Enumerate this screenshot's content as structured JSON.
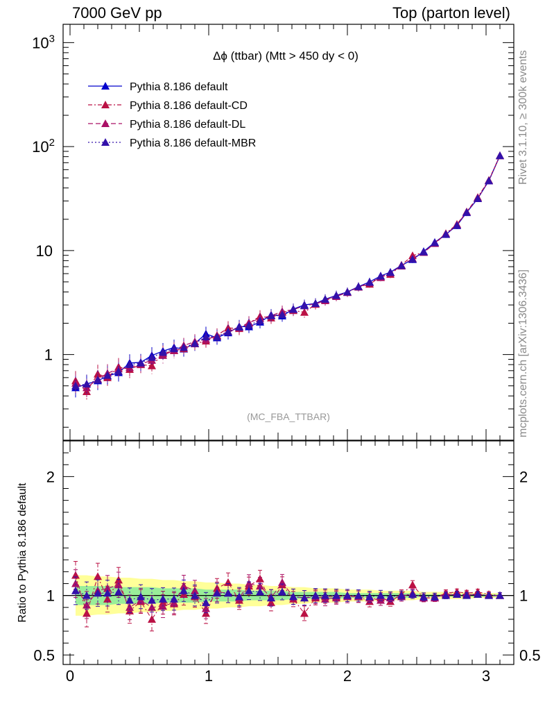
{
  "header": {
    "left": "7000 GeV pp",
    "right": "Top (parton level)"
  },
  "side_text": {
    "rivet": "Rivet 3.1.10, ≥ 300k events",
    "mcplots": "mcplots.cern.ch [arXiv:1306.3436]"
  },
  "watermark": "(MC_FBA_TTBAR)",
  "chart_data": [
    {
      "type": "line",
      "title": "Δϕ (ttbar) (Mtt > 450 dy < 0)",
      "xlabel": "",
      "ylabel": "",
      "yscale": "log",
      "xlim": [
        -0.05,
        3.2
      ],
      "ylim": [
        0.15,
        1500
      ],
      "x_ticks": [
        "0",
        "1",
        "2",
        "3"
      ],
      "y_ticks": [
        "1",
        "10",
        "10^2",
        "10^3"
      ],
      "legend_position": "top-left",
      "x": [
        0.04,
        0.12,
        0.2,
        0.27,
        0.35,
        0.43,
        0.51,
        0.59,
        0.67,
        0.75,
        0.82,
        0.9,
        0.98,
        1.06,
        1.14,
        1.22,
        1.29,
        1.37,
        1.45,
        1.53,
        1.61,
        1.69,
        1.77,
        1.84,
        1.92,
        2.0,
        2.08,
        2.16,
        2.24,
        2.31,
        2.39,
        2.47,
        2.55,
        2.63,
        2.71,
        2.79,
        2.86,
        2.94,
        3.02,
        3.1
      ],
      "series": [
        {
          "name": "Pythia 8.186 default",
          "color": "#0000cc",
          "dash": "",
          "error_bars": true,
          "values": [
            0.48,
            0.52,
            0.56,
            0.62,
            0.67,
            0.83,
            0.84,
            0.98,
            1.08,
            1.17,
            1.13,
            1.28,
            1.58,
            1.45,
            1.62,
            1.86,
            1.85,
            2.05,
            2.4,
            2.35,
            2.74,
            3.0,
            3.1,
            3.4,
            3.7,
            4.0,
            4.5,
            5.0,
            5.7,
            6.2,
            7.2,
            8.2,
            9.8,
            12.0,
            14.3,
            17.4,
            23.2,
            31.6,
            46.8,
            81.8
          ]
        },
        {
          "name": "Pythia 8.186 default-CD",
          "color": "#bb1144",
          "dash": "6,3,2,3",
          "error_bars": true,
          "values": [
            0.56,
            0.44,
            0.65,
            0.6,
            0.76,
            0.72,
            0.8,
            0.78,
            1.02,
            1.09,
            1.14,
            1.27,
            1.35,
            1.53,
            1.8,
            1.78,
            2.0,
            2.33,
            2.25,
            2.55,
            2.65,
            2.55,
            3.04,
            3.35,
            3.66,
            4.0,
            4.48,
            4.75,
            5.6,
            5.9,
            7.25,
            8.95,
            9.6,
            11.8,
            14.6,
            17.9,
            23.6,
            32.5,
            47.5,
            82.0
          ]
        },
        {
          "name": "Pythia 8.186 default-DL",
          "color": "#aa1166",
          "dash": "7,4",
          "error_bars": true,
          "values": [
            0.53,
            0.48,
            0.58,
            0.66,
            0.73,
            0.75,
            0.81,
            0.88,
            0.98,
            1.1,
            1.22,
            1.33,
            1.4,
            1.5,
            1.66,
            1.82,
            2.03,
            2.22,
            2.36,
            2.6,
            2.7,
            2.95,
            3.08,
            3.3,
            3.62,
            3.95,
            4.45,
            4.9,
            5.5,
            6.1,
            7.1,
            8.4,
            9.6,
            11.7,
            14.4,
            17.6,
            23.5,
            31.8,
            47.0,
            81.5
          ]
        },
        {
          "name": "Pythia 8.186 default-MBR",
          "color": "#3311aa",
          "dash": "2,3",
          "error_bars": true,
          "values": [
            0.5,
            0.52,
            0.57,
            0.63,
            0.69,
            0.8,
            0.83,
            0.94,
            1.05,
            1.14,
            1.17,
            1.28,
            1.48,
            1.48,
            1.66,
            1.84,
            1.92,
            2.12,
            2.36,
            2.42,
            2.72,
            2.95,
            3.1,
            3.4,
            3.7,
            4.0,
            4.5,
            4.96,
            5.68,
            6.16,
            7.18,
            8.26,
            9.72,
            11.9,
            14.36,
            17.5,
            23.3,
            31.8,
            47.0,
            81.8
          ]
        }
      ]
    },
    {
      "type": "line",
      "ylabel": "Ratio to Pythia 8.186 default",
      "xlabel": "",
      "xlim": [
        -0.05,
        3.2
      ],
      "ylim": [
        0.42,
        2.3
      ],
      "x_ticks": [
        "0",
        "1",
        "2",
        "3"
      ],
      "y_ticks": [
        "0.5",
        "1",
        "2"
      ],
      "x": [
        0.04,
        0.12,
        0.2,
        0.27,
        0.35,
        0.43,
        0.51,
        0.59,
        0.67,
        0.75,
        0.82,
        0.9,
        0.98,
        1.06,
        1.14,
        1.22,
        1.29,
        1.37,
        1.45,
        1.53,
        1.61,
        1.69,
        1.77,
        1.84,
        1.92,
        2.0,
        2.08,
        2.16,
        2.24,
        2.31,
        2.39,
        2.47,
        2.55,
        2.63,
        2.71,
        2.79,
        2.86,
        2.94,
        3.02,
        3.1
      ],
      "bands": {
        "yellow_half_width": [
          0.17,
          0.17,
          0.16,
          0.16,
          0.15,
          0.15,
          0.14,
          0.14,
          0.13,
          0.13,
          0.12,
          0.12,
          0.11,
          0.11,
          0.1,
          0.1,
          0.09,
          0.09,
          0.08,
          0.08,
          0.07,
          0.07,
          0.06,
          0.06,
          0.06,
          0.05,
          0.05,
          0.05,
          0.04,
          0.04,
          0.04,
          0.04,
          0.03,
          0.03,
          0.03,
          0.03,
          0.03,
          0.02,
          0.02,
          0.02
        ],
        "green_half_width": [
          0.08,
          0.08,
          0.08,
          0.08,
          0.07,
          0.07,
          0.07,
          0.07,
          0.06,
          0.06,
          0.06,
          0.06,
          0.05,
          0.05,
          0.05,
          0.05,
          0.04,
          0.04,
          0.04,
          0.04,
          0.03,
          0.03,
          0.03,
          0.03,
          0.03,
          0.02,
          0.02,
          0.02,
          0.02,
          0.02,
          0.02,
          0.02,
          0.01,
          0.01,
          0.01,
          0.01,
          0.01,
          0.01,
          0.01,
          0.01
        ]
      },
      "series": [
        {
          "name": "Pythia 8.186 default-CD",
          "color": "#bb1144",
          "dash": "6,3,2,3",
          "values": [
            1.17,
            0.85,
            1.16,
            0.97,
            1.13,
            0.87,
            0.95,
            0.8,
            0.94,
            0.93,
            1.01,
            0.99,
            0.85,
            1.06,
            1.11,
            0.96,
            1.08,
            1.14,
            0.94,
            1.09,
            0.97,
            0.85,
            0.98,
            0.99,
            0.99,
            1.0,
            0.99,
            0.95,
            0.98,
            0.95,
            1.01,
            1.09,
            0.98,
            0.98,
            1.02,
            1.03,
            1.02,
            1.03,
            1.01,
            1.0
          ]
        },
        {
          "name": "Pythia 8.186 default-DL",
          "color": "#aa1166",
          "dash": "7,4",
          "values": [
            1.1,
            0.92,
            1.04,
            1.06,
            1.09,
            0.9,
            0.96,
            0.9,
            0.91,
            0.94,
            1.08,
            1.04,
            0.89,
            1.03,
            1.02,
            0.98,
            1.1,
            1.08,
            0.98,
            1.11,
            0.99,
            0.98,
            0.99,
            0.97,
            0.98,
            0.99,
            0.99,
            0.98,
            0.96,
            0.98,
            0.99,
            1.02,
            0.98,
            0.98,
            1.01,
            1.01,
            1.01,
            1.01,
            1.0,
            1.0
          ]
        },
        {
          "name": "Pythia 8.186 default-MBR",
          "color": "#3311aa",
          "dash": "2,3",
          "values": [
            1.04,
            1.0,
            1.02,
            1.02,
            1.03,
            0.96,
            0.99,
            0.96,
            0.97,
            0.97,
            1.04,
            1.0,
            0.94,
            1.02,
            1.02,
            0.99,
            1.04,
            1.03,
            0.98,
            1.03,
            0.99,
            0.98,
            1.0,
            1.0,
            1.0,
            1.0,
            1.0,
            0.99,
            1.0,
            0.99,
            1.0,
            1.01,
            0.99,
            0.99,
            1.0,
            1.01,
            1.0,
            1.01,
            1.0,
            1.0
          ]
        }
      ]
    }
  ]
}
